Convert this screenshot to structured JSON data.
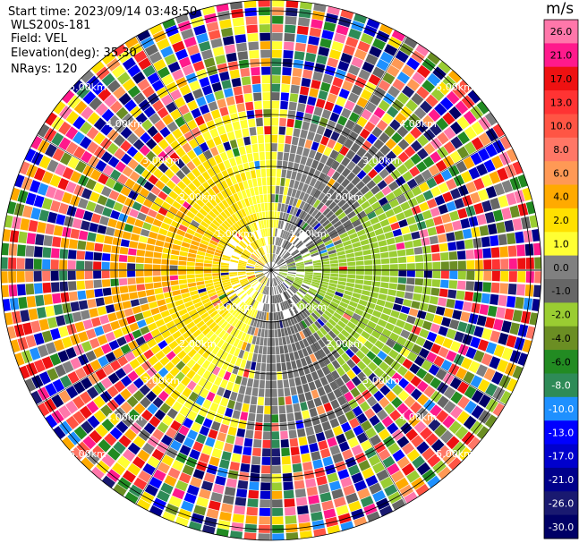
{
  "header": {
    "start_time": "Start time: 2023/09/14 03:48:50",
    "radar": "WLS200s-181",
    "field": "Field: VEL",
    "elevation": "Elevation(deg): 35.30",
    "nrays": "NRays: 120"
  },
  "colorbar": {
    "unit": "m/s",
    "ticks": [
      "26.0",
      "21.0",
      "17.0",
      "13.0",
      "10.0",
      "8.0",
      "6.0",
      "4.0",
      "2.0",
      "1.0",
      "0.0",
      "-1.0",
      "-2.0",
      "-4.0",
      "-6.0",
      "-8.0",
      "-10.0",
      "-13.0",
      "-17.0",
      "-21.0",
      "-26.0",
      "-30.0"
    ],
    "colors": [
      "#ff77aa",
      "#ff1a8c",
      "#ee1111",
      "#ff3333",
      "#ff5544",
      "#ff7766",
      "#ff9955",
      "#ffaa00",
      "#ffe000",
      "#ffff33",
      "#808080",
      "#666666",
      "#9acd32",
      "#6b8e23",
      "#228b22",
      "#2e8b57",
      "#1e90ff",
      "#0000ff",
      "#0000cd",
      "#00008b",
      "#191970",
      "#000066"
    ]
  },
  "chart_data": {
    "type": "heatmap",
    "projection": "polar (PPI)",
    "field": "VEL",
    "units": "m/s",
    "nrays": 120,
    "elevation_deg": 35.3,
    "range_ring_labels_km": [
      "1.00km",
      "2.00km",
      "3.00km",
      "4.00km",
      "5.00km"
    ],
    "velocity_scale": [
      -30.0,
      26.0
    ],
    "pattern": "coherent velocity near centre (grey/green approaching to the north-east and south-east, yellow/orange receding to west and north), noise-dominated multicolour speckle beyond about 3 km"
  }
}
